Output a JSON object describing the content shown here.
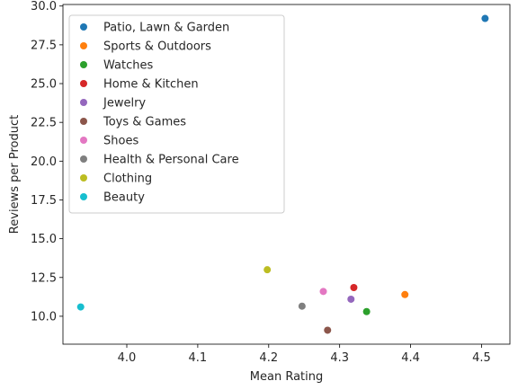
{
  "chart_data": {
    "type": "scatter",
    "title": "",
    "xlabel": "Mean Rating",
    "ylabel": "Reviews per Product",
    "xlim": [
      3.91,
      4.54
    ],
    "ylim": [
      8.2,
      30.1
    ],
    "xticks": [
      {
        "value": 4.0,
        "label": "4.0"
      },
      {
        "value": 4.1,
        "label": "4.1"
      },
      {
        "value": 4.2,
        "label": "4.2"
      },
      {
        "value": 4.3,
        "label": "4.3"
      },
      {
        "value": 4.4,
        "label": "4.4"
      },
      {
        "value": 4.5,
        "label": "4.5"
      }
    ],
    "yticks": [
      {
        "value": 10.0,
        "label": "10.0"
      },
      {
        "value": 12.5,
        "label": "12.5"
      },
      {
        "value": 15.0,
        "label": "15.0"
      },
      {
        "value": 17.5,
        "label": "17.5"
      },
      {
        "value": 20.0,
        "label": "20.0"
      },
      {
        "value": 22.5,
        "label": "22.5"
      },
      {
        "value": 25.0,
        "label": "25.0"
      },
      {
        "value": 27.5,
        "label": "27.5"
      },
      {
        "value": 30.0,
        "label": "30.0"
      }
    ],
    "grid": false,
    "legend_position": "top-left",
    "series": [
      {
        "name": "Patio, Lawn & Garden",
        "color": "#1f77b4",
        "x": 4.505,
        "y": 29.2
      },
      {
        "name": "Sports & Outdoors",
        "color": "#ff7f0e",
        "x": 4.392,
        "y": 11.4
      },
      {
        "name": "Watches",
        "color": "#2ca02c",
        "x": 4.338,
        "y": 10.3
      },
      {
        "name": "Home & Kitchen",
        "color": "#d62728",
        "x": 4.32,
        "y": 11.85
      },
      {
        "name": "Jewelry",
        "color": "#9467bd",
        "x": 4.316,
        "y": 11.1
      },
      {
        "name": "Toys & Games",
        "color": "#8c564b",
        "x": 4.283,
        "y": 9.1
      },
      {
        "name": "Shoes",
        "color": "#e377c2",
        "x": 4.277,
        "y": 11.6
      },
      {
        "name": "Health & Personal Care",
        "color": "#7f7f7f",
        "x": 4.247,
        "y": 10.65
      },
      {
        "name": "Clothing",
        "color": "#bcbd22",
        "x": 4.198,
        "y": 13.0
      },
      {
        "name": "Beauty",
        "color": "#17becf",
        "x": 3.935,
        "y": 10.6
      }
    ]
  }
}
